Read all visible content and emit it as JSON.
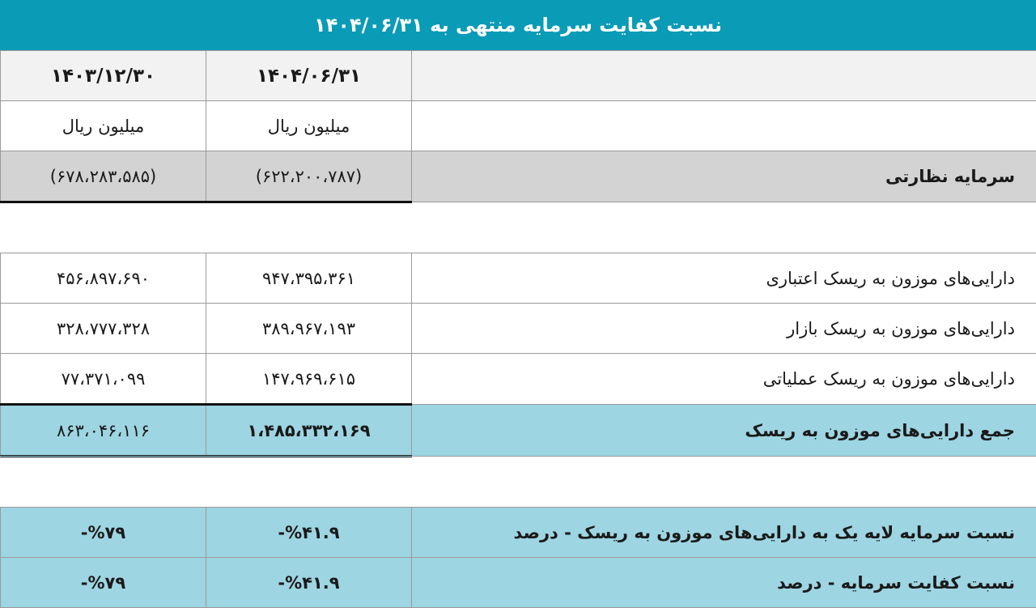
{
  "title": "نسبت کفایت سرمایه منتهی به ۱۴۰۴/۰۶/۳۱",
  "columns": [
    "۱۴۰۴/۰۶/۳۱",
    "۱۴۰۳/۱۲/۳۰"
  ],
  "units": [
    "میلیون ریال",
    "میلیون ریال"
  ],
  "rows": [
    {
      "label": "سرمایه نظارتی",
      "values": [
        "(۶۲۲،۲۰۰،۷۸۷)",
        "(۶۷۸،۲۸۳،۵۸۵)"
      ]
    },
    {
      "label": "دارایی‌های موزون به ریسک اعتباری",
      "values": [
        "۹۴۷،۳۹۵،۳۶۱",
        "۴۵۶،۸۹۷،۶۹۰"
      ]
    },
    {
      "label": "دارایی‌های موزون به ریسک بازار",
      "values": [
        "۳۸۹،۹۶۷،۱۹۳",
        "۳۲۸،۷۷۷،۳۲۸"
      ]
    },
    {
      "label": "دارایی‌های موزون به ریسک عملیاتی",
      "values": [
        "۱۴۷،۹۶۹،۶۱۵",
        "۷۷،۳۷۱،۰۹۹"
      ]
    },
    {
      "label": "جمع دارایی‌های موزون به ریسک",
      "values": [
        "۱،۴۸۵،۳۳۲،۱۶۹",
        "۸۶۳،۰۴۶،۱۱۶"
      ]
    },
    {
      "label": "نسبت سرمایه لایه یک به دارایی‌های موزون به ریسک - درصد",
      "values": [
        "-%۴۱.۹",
        "-%۷۹"
      ]
    },
    {
      "label": "نسبت کفایت سرمایه - درصد",
      "values": [
        "-%۴۱.۹",
        "-%۷۹"
      ]
    }
  ],
  "colors": {
    "title_bar": "#0a9bb7",
    "highlight": "#9ed5e2",
    "gray": "#d3d3d3"
  }
}
